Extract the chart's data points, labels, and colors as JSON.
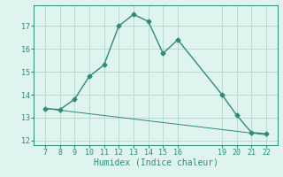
{
  "xlabel": "Humidex (Indice chaleur)",
  "x": [
    7,
    8,
    9,
    10,
    11,
    12,
    13,
    14,
    15,
    16,
    19,
    20,
    21,
    22
  ],
  "y": [
    13.4,
    13.35,
    13.8,
    14.8,
    15.3,
    17.0,
    17.5,
    17.2,
    15.8,
    16.4,
    14.0,
    13.1,
    12.35,
    12.3
  ],
  "trend_x": [
    7,
    22
  ],
  "trend_y": [
    13.4,
    12.25
  ],
  "line_color": "#2e8b74",
  "marker": "D",
  "marker_size": 2.5,
  "bg_color": "#dff4ee",
  "grid_color": "#b0d8cc",
  "ylim": [
    11.8,
    17.9
  ],
  "yticks": [
    12,
    13,
    14,
    15,
    16,
    17
  ],
  "xticks": [
    7,
    8,
    9,
    10,
    11,
    12,
    13,
    14,
    15,
    16,
    19,
    20,
    21,
    22
  ],
  "label_fontsize": 7,
  "tick_fontsize": 6
}
